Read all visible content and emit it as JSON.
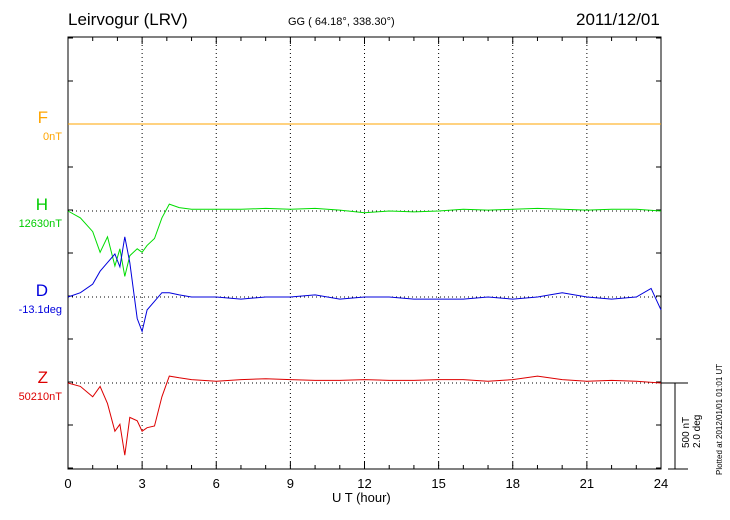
{
  "header": {
    "station": "Leirvogur (LRV)",
    "coords": "GG ( 64.18°, 338.30°)",
    "date": "2011/12/01"
  },
  "colors": {
    "F": "#ffa500",
    "H": "#00dd00",
    "D": "#0000dd",
    "Z": "#dd0000"
  },
  "footer": {
    "plotted": "Plotted at 2012/01/01 01:01 UT",
    "scale_nt": "500 nT",
    "scale_deg": "2.0 deg"
  },
  "chart_data": {
    "type": "line",
    "title": "Leirvogur (LRV)",
    "xlabel": "U T (hour)",
    "xlim": [
      0,
      24
    ],
    "xticks": [
      "0",
      "3",
      "6",
      "9",
      "12",
      "15",
      "18",
      "21",
      "24"
    ],
    "grid": true,
    "series": [
      {
        "name": "F",
        "baseline": "0nT",
        "y": [
          0,
          0
        ],
        "x": [
          0,
          24
        ]
      },
      {
        "name": "H",
        "baseline": "12630nT",
        "x": [
          0,
          0.5,
          1,
          1.3,
          1.6,
          1.9,
          2.1,
          2.3,
          2.5,
          2.8,
          3.0,
          3.2,
          3.5,
          3.8,
          4.1,
          4.5,
          5,
          6,
          7,
          8,
          9,
          10,
          11,
          12,
          13,
          14,
          15,
          16,
          17,
          18,
          19,
          20,
          21,
          22,
          23,
          24
        ],
        "y": [
          0,
          -40,
          -120,
          -240,
          -150,
          -320,
          -220,
          -380,
          -260,
          -220,
          -240,
          -200,
          -160,
          -40,
          40,
          20,
          10,
          10,
          10,
          15,
          10,
          15,
          5,
          -10,
          0,
          -5,
          0,
          10,
          5,
          10,
          15,
          10,
          5,
          10,
          10,
          0
        ]
      },
      {
        "name": "D",
        "units": "-13.1deg",
        "x": [
          0,
          0.5,
          1,
          1.3,
          1.6,
          1.9,
          2.1,
          2.3,
          2.5,
          2.8,
          3.0,
          3.2,
          3.5,
          3.8,
          4.1,
          4.5,
          5,
          6,
          7,
          8,
          9,
          10,
          11,
          12,
          13,
          14,
          15,
          16,
          17,
          18,
          19,
          20,
          21,
          22,
          23,
          23.6,
          24
        ],
        "y": [
          0,
          0.1,
          0.3,
          0.6,
          0.8,
          1.0,
          0.7,
          1.4,
          0.8,
          -0.5,
          -0.8,
          -0.3,
          -0.1,
          0.1,
          0.1,
          0.05,
          0,
          0,
          -0.05,
          0,
          0,
          0.05,
          -0.05,
          0,
          0,
          -0.05,
          -0.05,
          -0.05,
          0,
          -0.05,
          0,
          0.1,
          0,
          -0.05,
          0,
          0.2,
          -0.3
        ]
      },
      {
        "name": "Z",
        "baseline": "50210nT",
        "x": [
          0,
          0.5,
          1,
          1.3,
          1.6,
          1.9,
          2.1,
          2.3,
          2.5,
          2.8,
          3.0,
          3.2,
          3.5,
          3.8,
          4.1,
          4.5,
          5,
          6,
          7,
          8,
          9,
          10,
          11,
          12,
          13,
          14,
          15,
          16,
          17,
          18,
          19,
          20,
          21,
          22,
          23,
          24
        ],
        "y": [
          0,
          -20,
          -80,
          -20,
          -120,
          -280,
          -240,
          -420,
          -200,
          -220,
          -280,
          -260,
          -250,
          -80,
          40,
          30,
          20,
          10,
          20,
          25,
          20,
          15,
          15,
          20,
          15,
          15,
          20,
          20,
          10,
          20,
          40,
          20,
          10,
          15,
          10,
          0
        ]
      }
    ]
  }
}
